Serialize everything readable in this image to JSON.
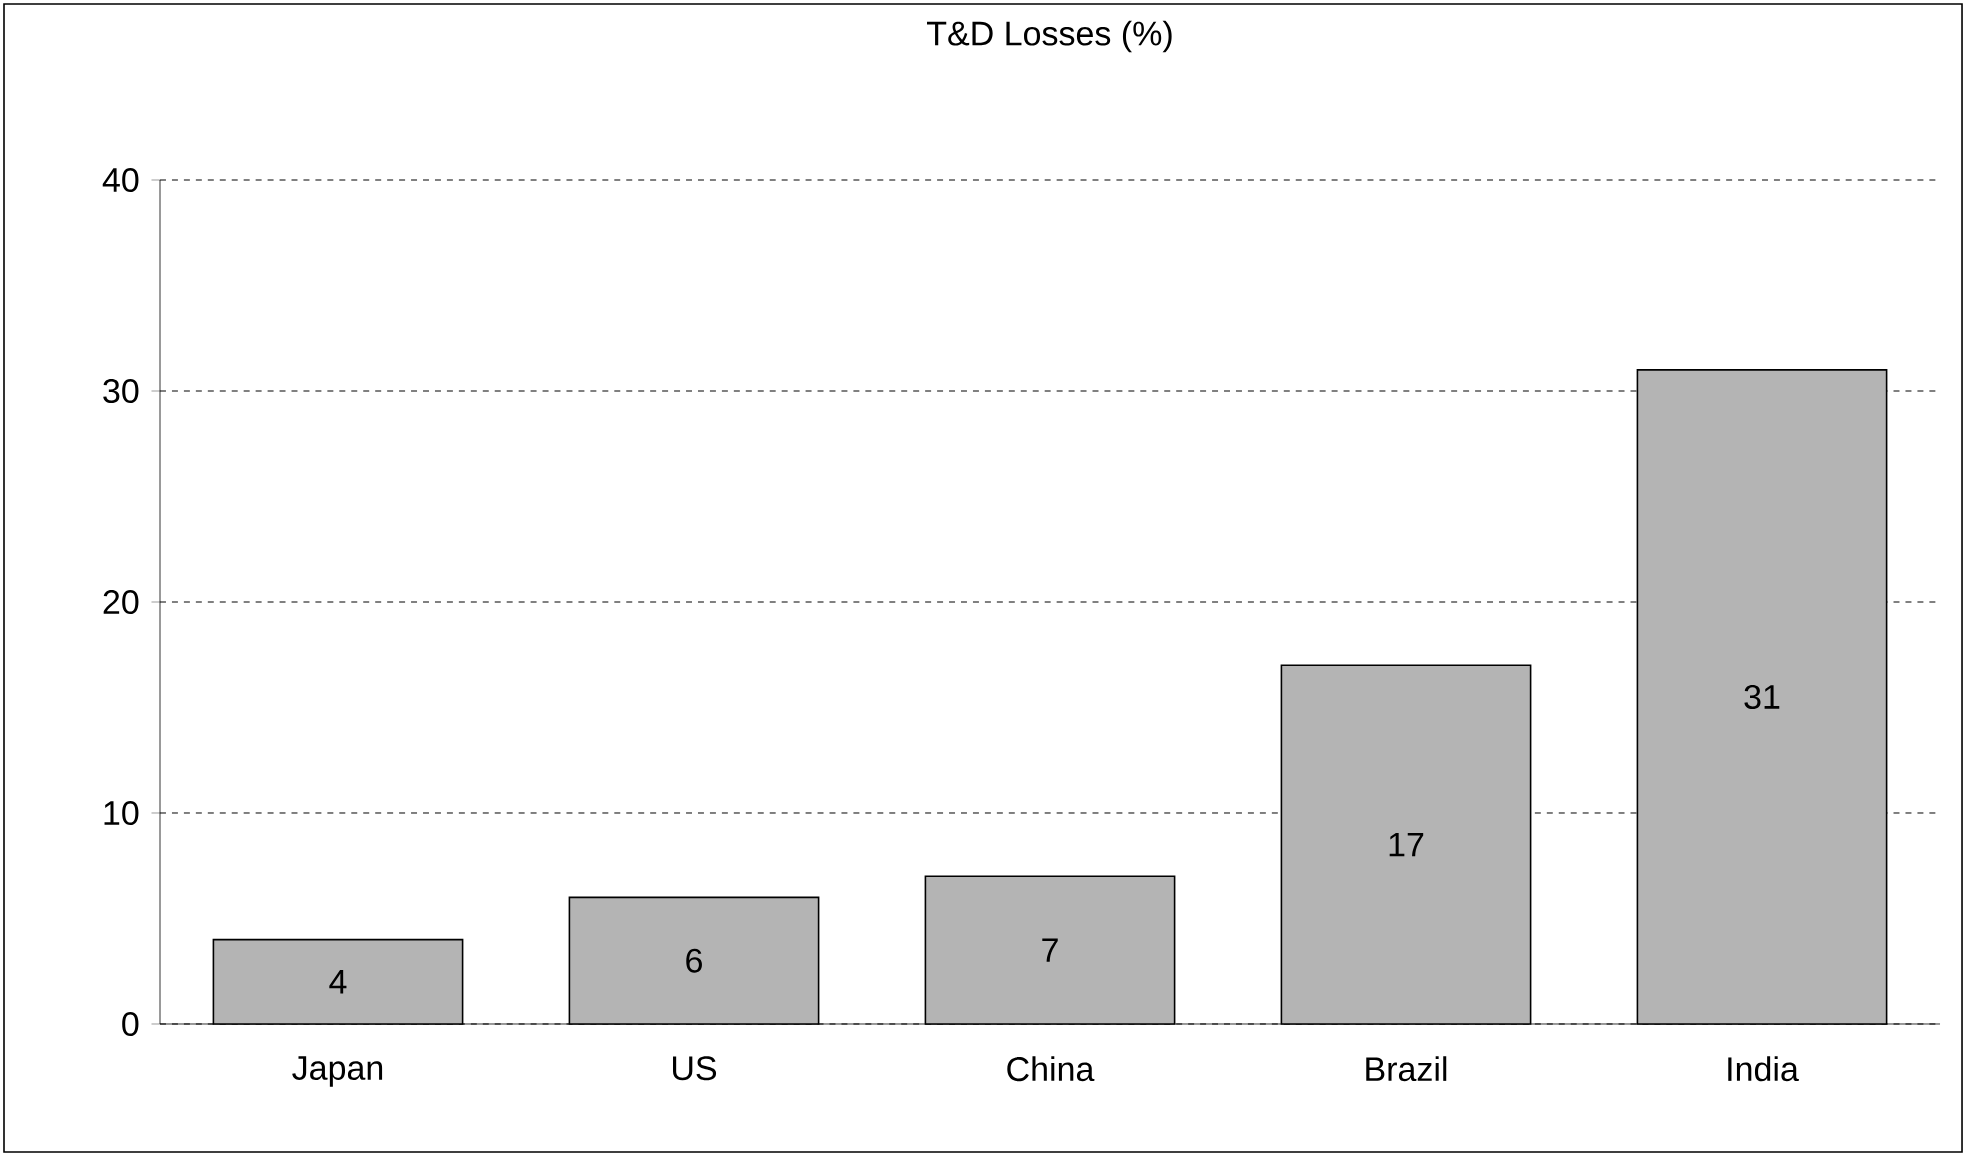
{
  "chart_data": {
    "type": "bar",
    "title": "T&D Losses (%)",
    "categories": [
      "Japan",
      "US",
      "China",
      "Brazil",
      "India"
    ],
    "values": [
      4,
      6,
      7,
      17,
      31
    ],
    "color": "#b4b4b4",
    "ylim": [
      0,
      40
    ],
    "yticks": [
      0,
      10,
      20,
      30,
      40
    ],
    "grid": "y",
    "data_labels": true
  }
}
